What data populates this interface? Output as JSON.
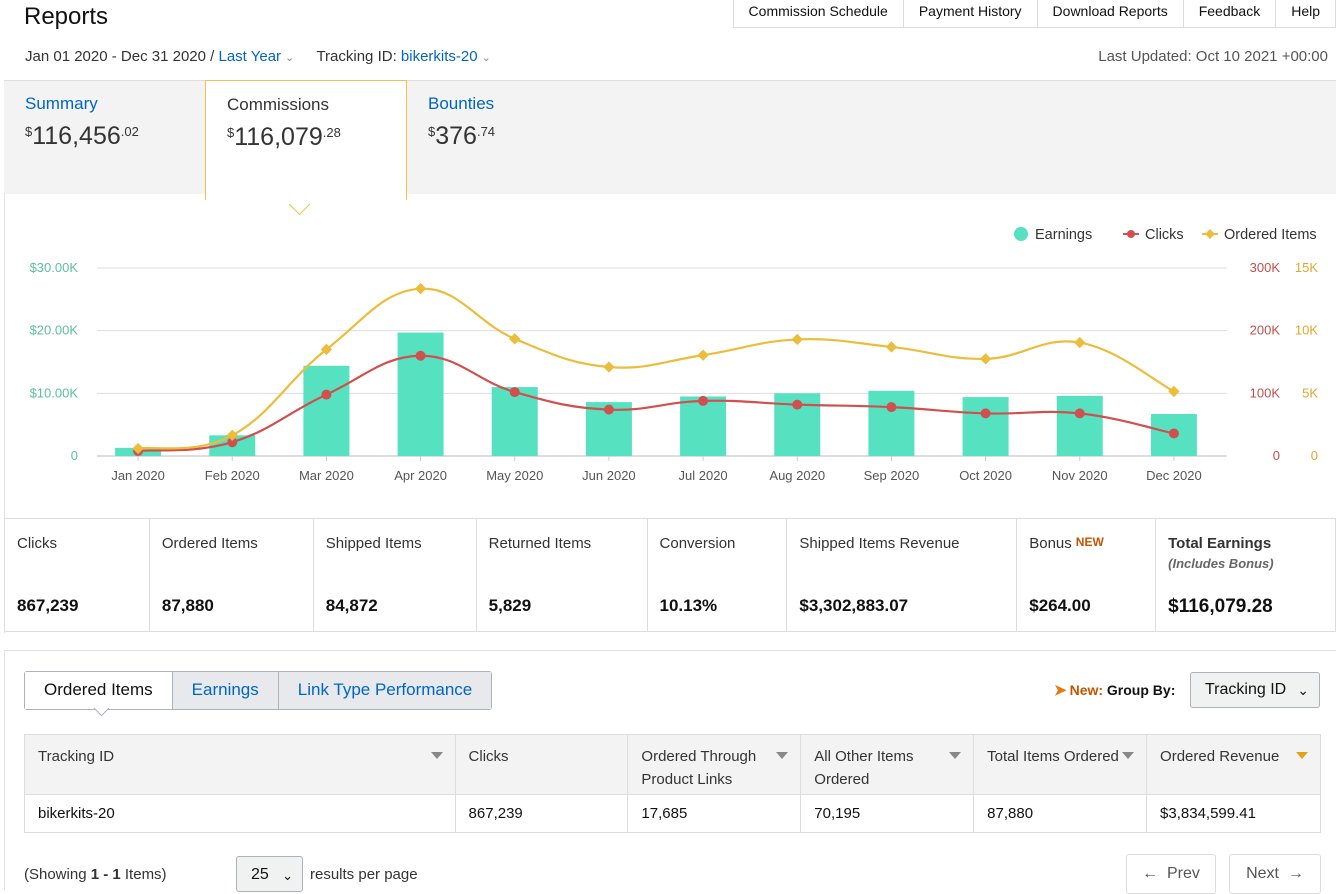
{
  "header": {
    "title": "Reports",
    "nav": [
      "Commission Schedule",
      "Payment History",
      "Download Reports",
      "Feedback",
      "Help"
    ],
    "date_range": "Jan 01 2020 - Dec 31 2020",
    "separator": " / ",
    "period": "Last Year",
    "tracking_label": "Tracking ID:",
    "tracking_id": "bikerkits-20",
    "last_updated": "Last Updated: Oct 10 2021 +00:00"
  },
  "tabs": {
    "summary": {
      "label": "Summary",
      "dollars": "116,456",
      "cents": ".02"
    },
    "commissions": {
      "label": "Commissions",
      "dollars": "116,079",
      "cents": ".28"
    },
    "bounties": {
      "label": "Bounties",
      "dollars": "376",
      "cents": ".74"
    },
    "currency": "$"
  },
  "chart_data": {
    "type": "bar",
    "categories": [
      "Jan 2020",
      "Feb 2020",
      "Mar 2020",
      "Apr 2020",
      "May 2020",
      "Jun 2020",
      "Jul 2020",
      "Aug 2020",
      "Sep 2020",
      "Oct 2020",
      "Nov 2020",
      "Dec 2020"
    ],
    "series": [
      {
        "name": "Earnings",
        "type": "bar",
        "color": "#56e2c1",
        "axis": "left",
        "values": [
          1300,
          3300,
          14400,
          19700,
          11000,
          8600,
          9500,
          10000,
          10400,
          9400,
          9600,
          6700
        ]
      },
      {
        "name": "Clicks",
        "type": "line",
        "color": "#d0504f",
        "axis": "right1",
        "values": [
          8000,
          22000,
          98000,
          160000,
          102000,
          74000,
          88000,
          82000,
          78000,
          68000,
          68000,
          36000
        ]
      },
      {
        "name": "Ordered Items",
        "type": "line",
        "color": "#ecbd3b",
        "axis": "right2",
        "values": [
          600,
          1650,
          8500,
          13350,
          9350,
          7100,
          8050,
          9300,
          8700,
          7750,
          9050,
          5150
        ]
      }
    ],
    "left_axis": {
      "ticks": [
        "0",
        "$10.00K",
        "$20.00K",
        "$30.00K"
      ],
      "max": 30000,
      "color": "#5cbf9c"
    },
    "right1_axis": {
      "ticks": [
        "0",
        "100K",
        "200K",
        "300K"
      ],
      "max": 300000,
      "color": "#c0504d"
    },
    "right2_axis": {
      "ticks": [
        "0",
        "5K",
        "10K",
        "15K"
      ],
      "max": 15000,
      "color": "#e0a82e"
    },
    "legend": [
      "Earnings",
      "Clicks",
      "Ordered Items"
    ],
    "legend_position": "top-right",
    "grid": true
  },
  "stats": [
    {
      "label": "Clicks",
      "value": "867,239"
    },
    {
      "label": "Ordered Items",
      "value": "87,880"
    },
    {
      "label": "Shipped Items",
      "value": "84,872"
    },
    {
      "label": "Returned Items",
      "value": "5,829"
    },
    {
      "label": "Conversion",
      "value": "10.13%"
    },
    {
      "label": "Shipped Items Revenue",
      "value": "$3,302,883.07"
    },
    {
      "label": "Bonus",
      "badge": "NEW",
      "value": "$264.00"
    },
    {
      "label": "Total Earnings",
      "sub": "(Includes Bonus)",
      "value": "$116,079.28"
    }
  ],
  "subtabs": [
    "Ordered Items",
    "Earnings",
    "Link Type Performance"
  ],
  "groupby": {
    "new": "New:",
    "label": "Group By:",
    "selected": "Tracking ID"
  },
  "table": {
    "headers": [
      "Tracking ID",
      "Clicks",
      "Ordered Through Product Links",
      "All Other Items Ordered",
      "Total Items Ordered",
      "Ordered Revenue"
    ],
    "rows": [
      [
        "bikerkits-20",
        "867,239",
        "17,685",
        "70,195",
        "87,880",
        "$3,834,599.41"
      ]
    ]
  },
  "footer": {
    "showing_prefix": "(Showing ",
    "showing_range": "1 - 1",
    "showing_suffix": " Items)",
    "per_page": "25",
    "per_page_label": "results per page",
    "prev": "Prev",
    "next": "Next"
  }
}
